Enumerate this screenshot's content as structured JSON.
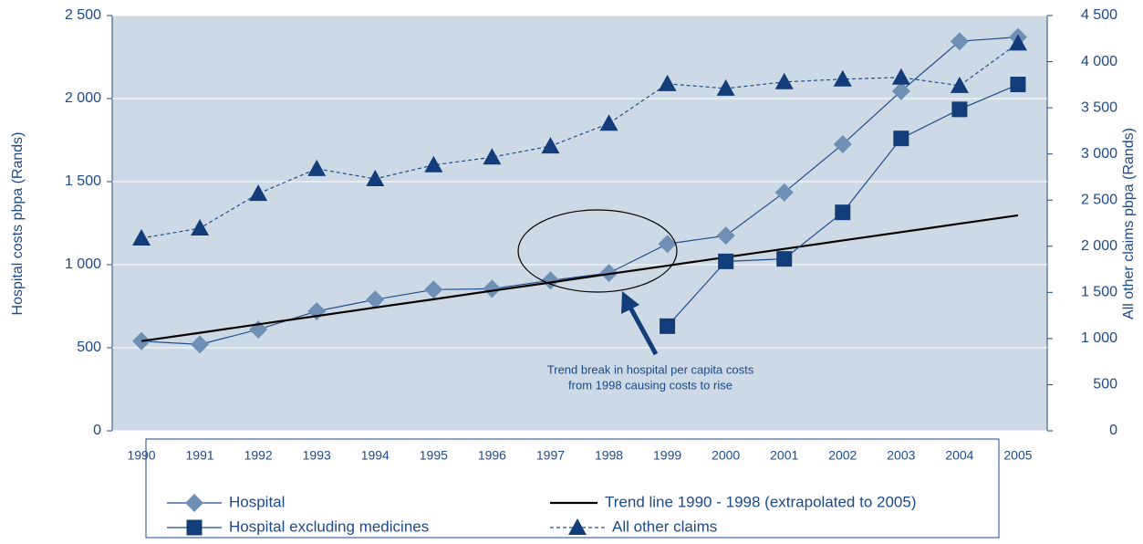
{
  "chart_data": {
    "type": "line",
    "categories": [
      "1990",
      "1991",
      "1992",
      "1993",
      "1994",
      "1995",
      "1996",
      "1997",
      "1998",
      "1999",
      "2000",
      "2001",
      "2002",
      "2003",
      "2004",
      "2005"
    ],
    "ylabel": "Hospital costs pbpa (Rands)",
    "y2label": "All other claims pbpa (Rands)",
    "ylim": [
      0,
      2500
    ],
    "yticks": [
      0,
      500,
      {
        "value": 1000,
        "label": "1 000"
      },
      {
        "value": 1500,
        "label": "1 500"
      },
      {
        "value": 2000,
        "label": "2 000"
      },
      {
        "value": 2500,
        "label": "2 500"
      }
    ],
    "y2lim": [
      0,
      4500
    ],
    "y2ticks": [
      0,
      500,
      {
        "value": 1000,
        "label": "1 000"
      },
      {
        "value": 1500,
        "label": "1 500"
      },
      {
        "value": 2000,
        "label": "2 000"
      },
      {
        "value": 2500,
        "label": "2 500"
      },
      {
        "value": 3000,
        "label": "3 000"
      },
      {
        "value": 3500,
        "label": "3 500"
      },
      {
        "value": 4000,
        "label": "4 000"
      },
      {
        "value": 4500,
        "label": "4 500"
      }
    ],
    "grid": true,
    "background": "#cdd9e5",
    "annotation": [
      "Trend break in hospital per capita costs",
      "from 1998 causing costs to rise"
    ],
    "series": [
      {
        "name": "Hospital",
        "color": "#6f8fb5",
        "line_color": "#1f4e8c",
        "marker": "diamond",
        "dash": false,
        "values": [
          540,
          520,
          610,
          720,
          790,
          850,
          855,
          905,
          950,
          1125,
          1175,
          1435,
          1725,
          2045,
          2345,
          2370
        ]
      },
      {
        "name": "Trend line 1990 - 1998 (extrapolated to 2005)",
        "color": "#000000",
        "line_color": "#000000",
        "marker": "none",
        "dash": false,
        "values": [
          540,
          590,
          641,
          691,
          742,
          792,
          843,
          893,
          944,
          994,
          1045,
          1095,
          1146,
          1196,
          1247,
          1297
        ]
      },
      {
        "name": "Hospital excluding medicines",
        "color": "#123d7a",
        "line_color": "#1f4e8c",
        "marker": "square",
        "dash": false,
        "values": [
          null,
          null,
          null,
          null,
          null,
          null,
          null,
          null,
          null,
          630,
          1020,
          1035,
          1315,
          1760,
          1935,
          2085
        ]
      },
      {
        "name": "All other claims",
        "color": "#123d7a",
        "line_color": "#1f4e8c",
        "marker": "triangle",
        "dash": true,
        "axis": "y2",
        "values": [
          2087,
          2195,
          2570,
          2840,
          2730,
          2880,
          2965,
          3085,
          3330,
          3760,
          3710,
          3780,
          3810,
          3830,
          3740,
          4200
        ]
      }
    ]
  }
}
